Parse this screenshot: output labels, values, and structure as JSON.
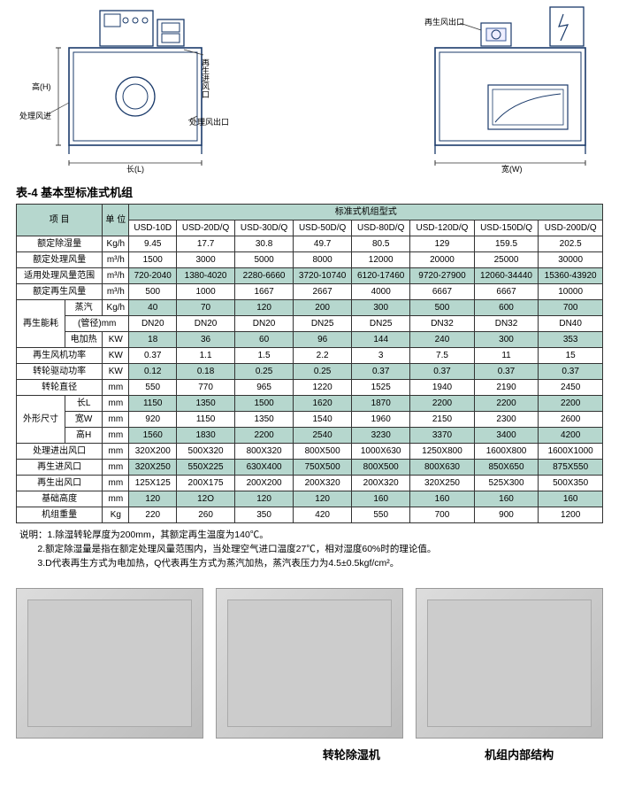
{
  "diagrams": {
    "left": {
      "label_height": "高(H)",
      "label_process_in": "处理风进",
      "label_regen_in": "再生进风口",
      "label_process_out": "处理风出口",
      "label_length": "长(L)"
    },
    "right": {
      "label_regen_out": "再生风出口",
      "label_width": "宽(W)"
    }
  },
  "table": {
    "title": "表-4   基本型标准式机组",
    "header_item": "项 目",
    "header_unit": "单 位",
    "header_type": "标准式机组型式",
    "models": [
      "USD-10D",
      "USD-20D/Q",
      "USD-30D/Q",
      "USD-50D/Q",
      "USD-80D/Q",
      "USD-120D/Q",
      "USD-150D/Q",
      "USD-200D/Q"
    ],
    "rows": [
      {
        "label": "额定除湿量",
        "unit": "Kg/h",
        "vals": [
          "9.45",
          "17.7",
          "30.8",
          "49.7",
          "80.5",
          "129",
          "159.5",
          "202.5"
        ],
        "banded": false
      },
      {
        "label": "额定处理风量",
        "unit": "m³/h",
        "vals": [
          "1500",
          "3000",
          "5000",
          "8000",
          "12000",
          "20000",
          "25000",
          "30000"
        ],
        "banded": false
      },
      {
        "label": "适用处理风量范围",
        "unit": "m³/h",
        "vals": [
          "720-2040",
          "1380-4020",
          "2280-6660",
          "3720-10740",
          "6120-17460",
          "9720-27900",
          "12060-34440",
          "15360-43920"
        ],
        "banded": true
      },
      {
        "label": "额定再生风量",
        "unit": "m³/h",
        "vals": [
          "500",
          "1000",
          "1667",
          "2667",
          "4000",
          "6667",
          "6667",
          "10000"
        ],
        "banded": false
      }
    ],
    "regen_group": {
      "label": "再生能耗",
      "rows": [
        {
          "label": "蒸汽",
          "unit": "Kg/h",
          "vals": [
            "40",
            "70",
            "120",
            "200",
            "300",
            "500",
            "600",
            "700"
          ],
          "banded": true
        },
        {
          "label": "(管径)mm",
          "unit": "",
          "vals": [
            "DN20",
            "DN20",
            "DN20",
            "DN25",
            "DN25",
            "DN32",
            "DN32",
            "DN40"
          ],
          "banded": false,
          "unit_merged": true
        },
        {
          "label": "电加热",
          "unit": "KW",
          "vals": [
            "18",
            "36",
            "60",
            "96",
            "144",
            "240",
            "300",
            "353"
          ],
          "banded": true
        }
      ]
    },
    "rows2": [
      {
        "label": "再生风机功率",
        "unit": "KW",
        "vals": [
          "0.37",
          "1.1",
          "1.5",
          "2.2",
          "3",
          "7.5",
          "11",
          "15"
        ],
        "banded": false
      },
      {
        "label": "转轮驱动功率",
        "unit": "KW",
        "vals": [
          "0.12",
          "0.18",
          "0.25",
          "0.25",
          "0.37",
          "0.37",
          "0.37",
          "0.37"
        ],
        "banded": true
      },
      {
        "label": "转轮直径",
        "unit": "mm",
        "vals": [
          "550",
          "770",
          "965",
          "1220",
          "1525",
          "1940",
          "2190",
          "2450"
        ],
        "banded": false
      }
    ],
    "dim_group": {
      "label": "外形尺寸",
      "rows": [
        {
          "label": "长L",
          "unit": "mm",
          "vals": [
            "1150",
            "1350",
            "1500",
            "1620",
            "1870",
            "2200",
            "2200",
            "2200"
          ],
          "banded": true
        },
        {
          "label": "宽W",
          "unit": "mm",
          "vals": [
            "920",
            "1150",
            "1350",
            "1540",
            "1960",
            "2150",
            "2300",
            "2600"
          ],
          "banded": false
        },
        {
          "label": "高H",
          "unit": "mm",
          "vals": [
            "1560",
            "1830",
            "2200",
            "2540",
            "3230",
            "3370",
            "3400",
            "4200"
          ],
          "banded": true
        }
      ]
    },
    "rows3": [
      {
        "label": "处理进出风口",
        "unit": "mm",
        "vals": [
          "320X200",
          "500X320",
          "800X320",
          "800X500",
          "1000X630",
          "1250X800",
          "1600X800",
          "1600X1000"
        ],
        "banded": false
      },
      {
        "label": "再生进风口",
        "unit": "mm",
        "vals": [
          "320X250",
          "550X225",
          "630X400",
          "750X500",
          "800X500",
          "800X630",
          "850X650",
          "875X550"
        ],
        "banded": true
      },
      {
        "label": "再生出风口",
        "unit": "mm",
        "vals": [
          "125X125",
          "200X175",
          "200X200",
          "200X320",
          "200X320",
          "320X250",
          "525X300",
          "500X350"
        ],
        "banded": false
      },
      {
        "label": "基础高度",
        "unit": "mm",
        "vals": [
          "120",
          "12O",
          "120",
          "120",
          "160",
          "160",
          "160",
          "160"
        ],
        "banded": true
      },
      {
        "label": "机组重量",
        "unit": "Kg",
        "vals": [
          "220",
          "260",
          "350",
          "420",
          "550",
          "700",
          "900",
          "1200"
        ],
        "banded": false
      }
    ]
  },
  "notes": {
    "prefix": "说明：",
    "lines": [
      "1.除湿转轮厚度为200mm，其额定再生温度为140℃。",
      "2.额定除湿量是指在额定处理风量范围内，当处理空气进口温度27℃，相对湿度60%时的理论值。",
      "3.D代表再生方式为电加热，Q代表再生方式为蒸汽加热，蒸汽表压力为4.5±0.5kgf/cm²。"
    ]
  },
  "captions": {
    "c2": "转轮除湿机",
    "c3": "机组内部结构"
  },
  "colors": {
    "header_bg": "#b6d7ce",
    "border": "#333333",
    "text": "#000000"
  }
}
